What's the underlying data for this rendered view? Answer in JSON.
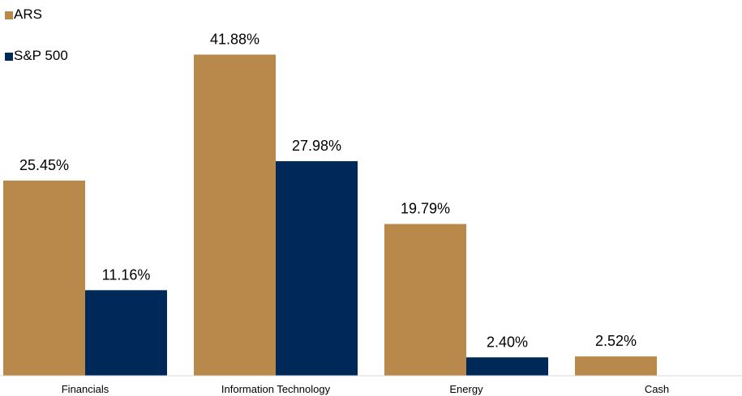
{
  "chart_data": {
    "type": "bar",
    "categories": [
      "Financials",
      "Information Technology",
      "Energy",
      "Cash"
    ],
    "series": [
      {
        "name": "ARS",
        "color": "#b9894b",
        "values": [
          25.45,
          41.88,
          19.79,
          2.52
        ],
        "labels": [
          "25.45%",
          "41.88%",
          "19.79%",
          "2.52%"
        ]
      },
      {
        "name": "S&P 500",
        "color": "#00295a",
        "values": [
          11.16,
          27.98,
          2.4,
          null
        ],
        "labels": [
          "11.16%",
          "27.98%",
          "2.40%",
          ""
        ]
      }
    ],
    "ylim": [
      0,
      49
    ],
    "grid": false,
    "legend_position": "top-left"
  }
}
